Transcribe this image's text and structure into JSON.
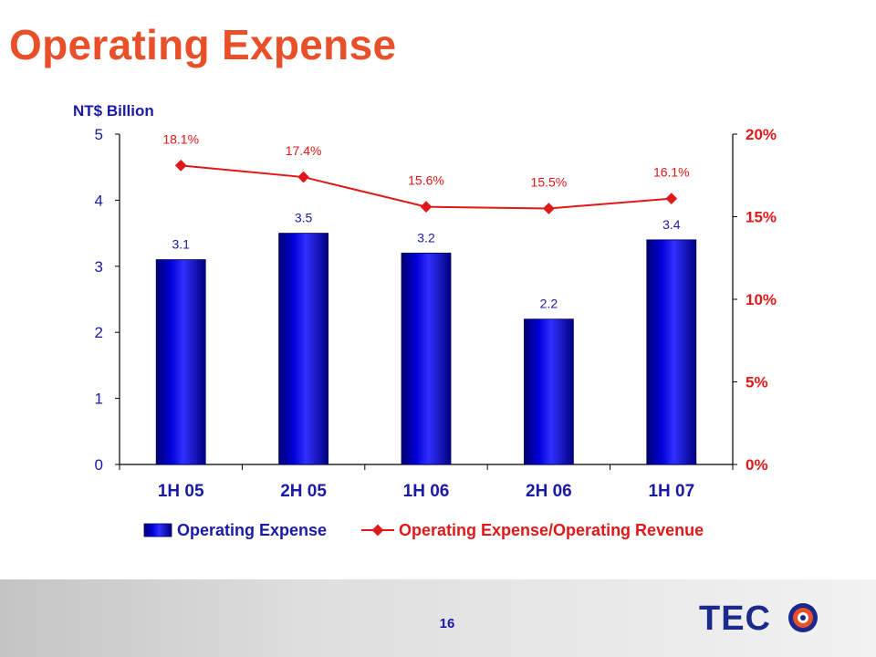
{
  "title": "Operating Expense",
  "page_number": "16",
  "logo": {
    "text": "TECO",
    "colors": [
      "#1a2a8c",
      "#e8502a"
    ]
  },
  "colors": {
    "title": "#e8502a",
    "bar": "#0000d8",
    "line": "#e01818",
    "axis_text": "#1a1aa8"
  },
  "chart_data": {
    "type": "bar+line",
    "categories": [
      "1H 05",
      "2H 05",
      "1H 06",
      "2H 06",
      "1H 07"
    ],
    "series": [
      {
        "name": "Operating Expense",
        "type": "bar",
        "axis": "left",
        "values": [
          3.1,
          3.5,
          3.2,
          2.2,
          3.4
        ],
        "labels": [
          "3.1",
          "3.5",
          "3.2",
          "2.2",
          "3.4"
        ]
      },
      {
        "name": "Operating Expense/Operating Revenue",
        "type": "line",
        "axis": "right",
        "values": [
          18.1,
          17.4,
          15.6,
          15.5,
          16.1
        ],
        "labels": [
          "18.1%",
          "17.4%",
          "15.6%",
          "15.5%",
          "16.1%"
        ]
      }
    ],
    "ylabel": "NT$ Billion",
    "ylim": [
      0,
      5
    ],
    "yticks": [
      "0",
      "1",
      "2",
      "3",
      "4",
      "5"
    ],
    "y2lim": [
      0,
      20
    ],
    "y2ticks": [
      "0%",
      "5%",
      "10%",
      "15%",
      "20%"
    ],
    "grid": false,
    "legend_position": "bottom"
  }
}
